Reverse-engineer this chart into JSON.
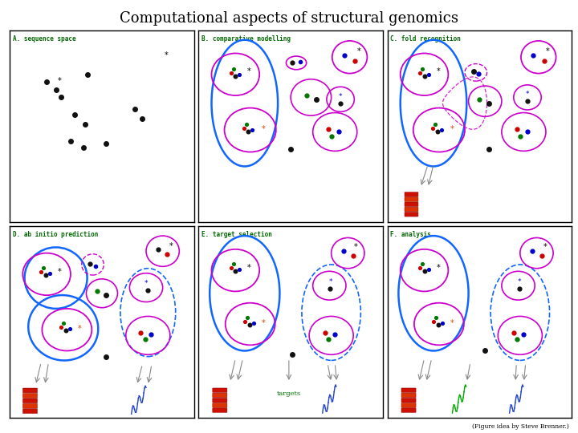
{
  "title": "Computational aspects of structural genomics",
  "title_fontsize": 13,
  "footer": "(Figure idea by Steve Brenner.)",
  "panel_labels": [
    "A. sequence space",
    "B. comparative modelling",
    "C. fold recognition",
    "D. ab initio prediction",
    "E. target selection",
    "F. analysis"
  ],
  "label_color": "#006600",
  "background": "#ffffff",
  "panel_bg": "#ffffff",
  "dot_black": "#111111",
  "dot_red": "#cc0000",
  "dot_green": "#007700",
  "dot_blue": "#0000cc",
  "circle_magenta": "#cc00cc",
  "circle_blue": "#1166ff"
}
